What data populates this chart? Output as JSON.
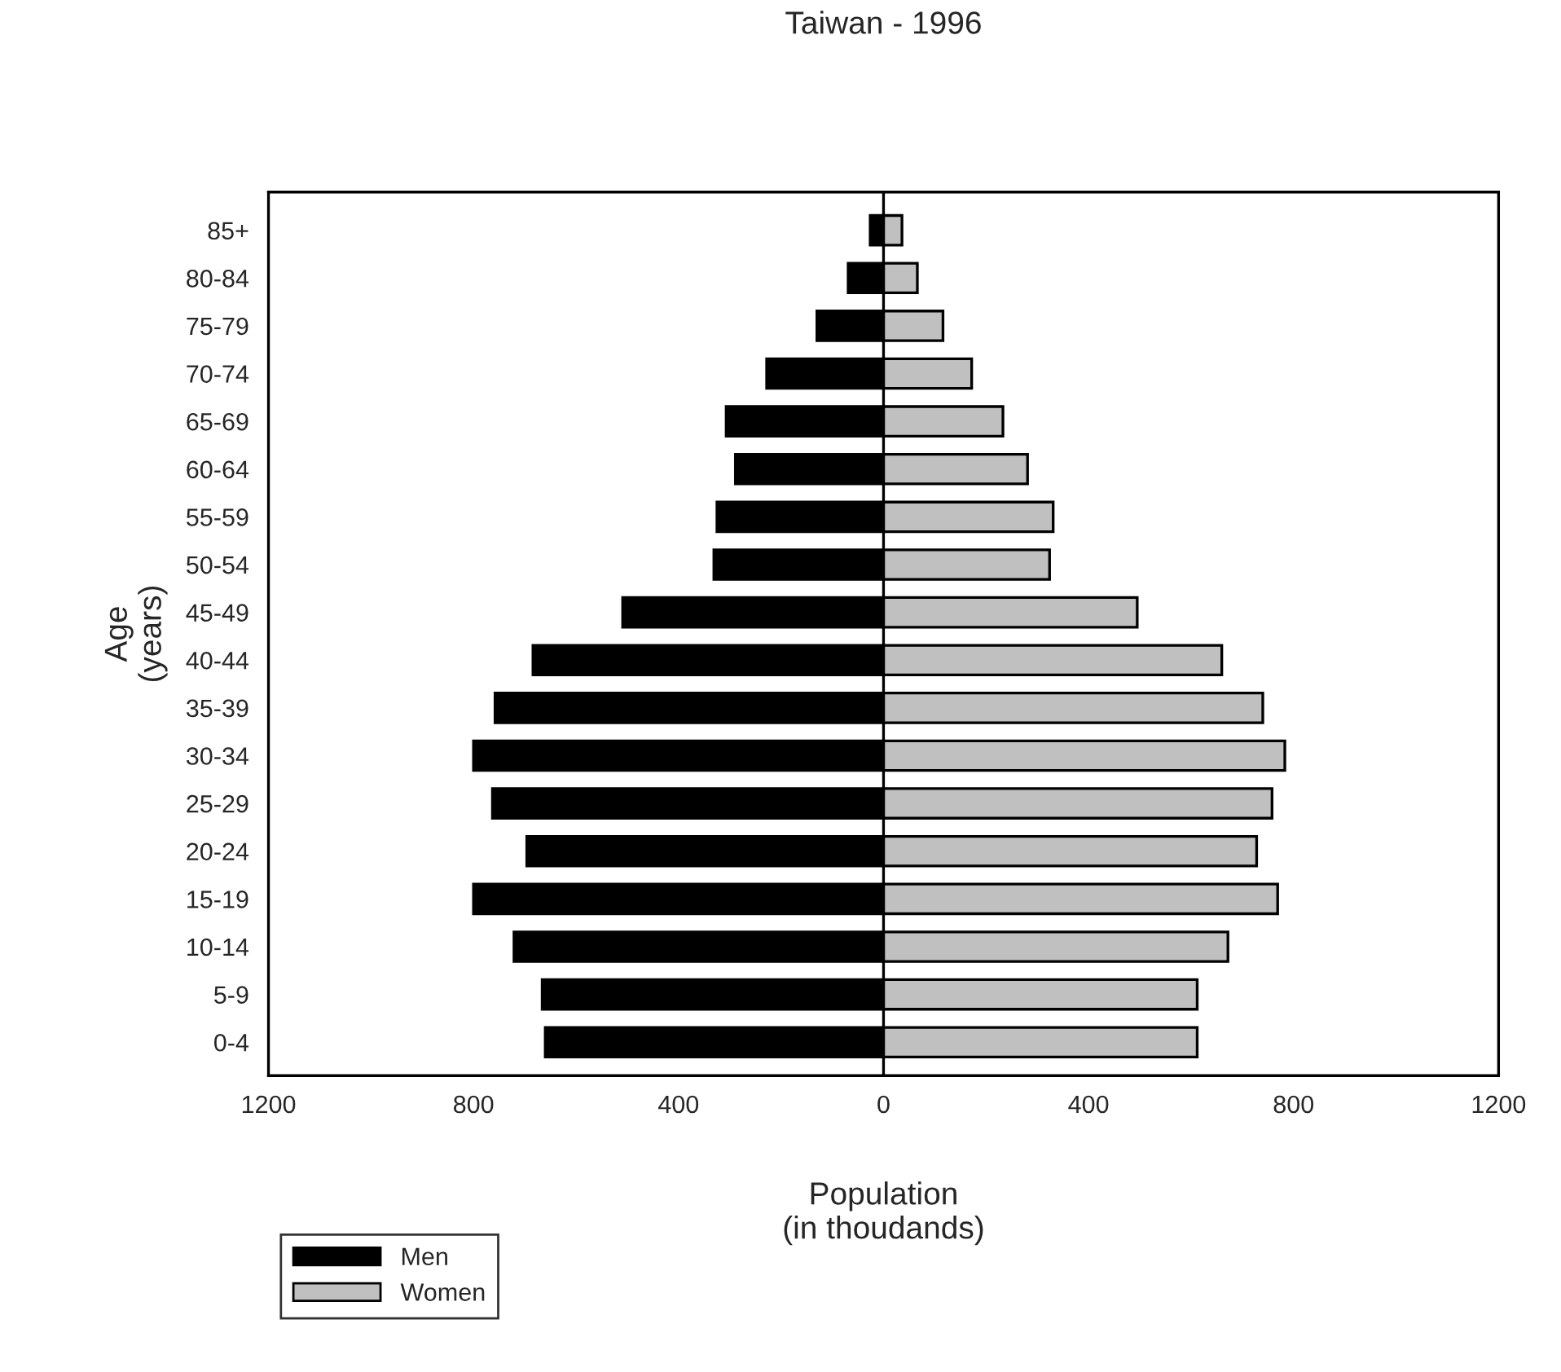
{
  "chart_data": {
    "type": "bar",
    "orientation": "horizontal",
    "title": "Taiwan - 1996",
    "xlabel": "Population\n(in thoudands)",
    "ylabel": "Age\n(years)",
    "categories": [
      "85+",
      "80-84",
      "75-79",
      "70-74",
      "65-69",
      "60-64",
      "55-59",
      "50-54",
      "45-49",
      "40-44",
      "35-39",
      "30-34",
      "25-29",
      "20-24",
      "15-19",
      "10-14",
      "5-9",
      "0-4"
    ],
    "series": [
      {
        "name": "Men",
        "color": "#000000",
        "values": [
          -26,
          -69,
          -130,
          -228,
          -307,
          -289,
          -325,
          -331,
          -509,
          -684,
          -758,
          -800,
          -763,
          -696,
          -800,
          -721,
          -666,
          -660
        ]
      },
      {
        "name": "Women",
        "color": "#c0c0c0",
        "values": [
          36,
          66,
          116,
          172,
          233,
          281,
          331,
          324,
          495,
          660,
          740,
          783,
          758,
          728,
          769,
          672,
          612,
          612
        ]
      }
    ],
    "xlim": [
      -1200,
      1200
    ],
    "xticks": [
      {
        "value": -1200,
        "label": "1200"
      },
      {
        "value": -800,
        "label": "800"
      },
      {
        "value": -400,
        "label": "400"
      },
      0,
      400,
      800,
      1200
    ],
    "ref_lines": [
      {
        "axis": "x",
        "value": 0,
        "color": "#000000"
      }
    ],
    "stacked": true,
    "grid": false,
    "legend": "bottom left"
  }
}
